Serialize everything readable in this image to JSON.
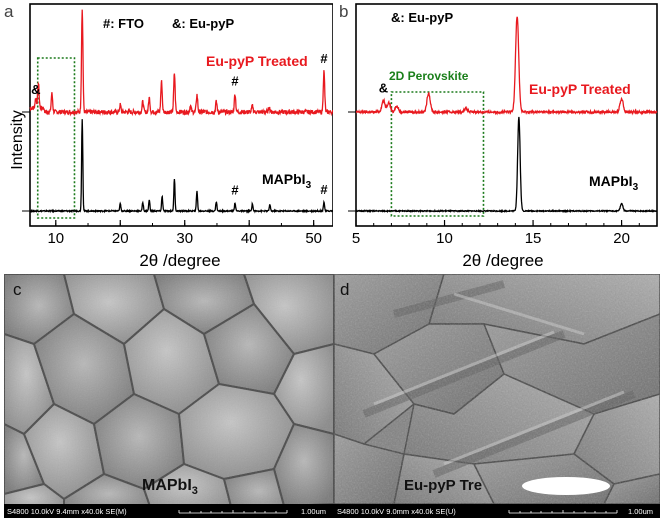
{
  "chart_data": [
    {
      "panel": "a",
      "type": "line",
      "xlabel": "2θ /degree",
      "ylabel": "Intensity",
      "xlim": [
        6,
        53
      ],
      "xticks": [
        10,
        20,
        30,
        40,
        50
      ],
      "header_labels": [
        "#: FTO",
        "&: Eu-pyP"
      ],
      "series": [
        {
          "name": "Eu-pyP Treated",
          "color": "#e8191f",
          "peaks": [
            [
              6.9,
              0.1
            ],
            [
              7.3,
              0.24
            ],
            [
              9.4,
              0.18
            ],
            [
              14.1,
              1.0
            ],
            [
              20.0,
              0.07
            ],
            [
              23.5,
              0.1
            ],
            [
              24.5,
              0.14
            ],
            [
              26.4,
              0.3
            ],
            [
              28.4,
              0.38
            ],
            [
              30.9,
              0.06
            ],
            [
              31.9,
              0.17
            ],
            [
              34.9,
              0.1
            ],
            [
              37.8,
              0.18
            ],
            [
              40.5,
              0.06
            ],
            [
              43.1,
              0.05
            ],
            [
              51.6,
              0.4
            ]
          ]
        },
        {
          "name": "MAPbI3",
          "color": "#000000",
          "peaks": [
            [
              14.1,
              1.0
            ],
            [
              20.0,
              0.08
            ],
            [
              23.5,
              0.09
            ],
            [
              24.5,
              0.12
            ],
            [
              26.5,
              0.16
            ],
            [
              28.4,
              0.35
            ],
            [
              31.9,
              0.22
            ],
            [
              34.9,
              0.1
            ],
            [
              37.8,
              0.09
            ],
            [
              40.5,
              0.08
            ],
            [
              43.2,
              0.07
            ],
            [
              51.6,
              0.1
            ]
          ]
        }
      ],
      "annotations": [
        {
          "text": "&",
          "x": 6.9,
          "series": 0
        },
        {
          "text": "#",
          "x": 37.8,
          "series": 0
        },
        {
          "text": "#",
          "x": 51.6,
          "series": 0
        },
        {
          "text": "#",
          "x": 37.8,
          "series": 1
        },
        {
          "text": "#",
          "x": 51.6,
          "series": 1
        }
      ],
      "highlight_box_x": [
        7.2,
        12.9
      ]
    },
    {
      "panel": "b",
      "type": "line",
      "xlabel": "2θ /degree",
      "xlim": [
        5,
        22
      ],
      "xticks": [
        5,
        10,
        15,
        20
      ],
      "header_labels": [
        "&: Eu-pyP"
      ],
      "series": [
        {
          "name": "Eu-pyP Treated",
          "color": "#e8191f",
          "peaks": [
            [
              6.55,
              0.12
            ],
            [
              6.85,
              0.1
            ],
            [
              7.3,
              0.06
            ],
            [
              9.1,
              0.2
            ],
            [
              11.2,
              0.04
            ],
            [
              14.1,
              1.0
            ],
            [
              20.0,
              0.14
            ]
          ]
        },
        {
          "name": "MAPbI3",
          "color": "#000000",
          "peaks": [
            [
              14.2,
              1.0
            ],
            [
              20.0,
              0.08
            ]
          ]
        }
      ],
      "annotations": [
        {
          "text": "&",
          "x": 6.55,
          "series": 0
        }
      ],
      "highlight_box_x": [
        7.0,
        12.2
      ],
      "highlight_box_label": "2D Perovskite"
    }
  ],
  "panels": {
    "a": {
      "letter": "a",
      "header_fto": "#: FTO",
      "header_eu": "&: Eu-pyP",
      "label_treated": "Eu-pyP Treated",
      "label_mapbi": "MAPbI",
      "label_mapbi_sub": "3",
      "xlabel": "2θ /degree",
      "ylabel": "Intensity"
    },
    "b": {
      "letter": "b",
      "header_eu": "&: Eu-pyP",
      "label_treated": "Eu-pyP Treated",
      "label_mapbi": "MAPbI",
      "label_mapbi_sub": "3",
      "box_label": "2D Perovskite",
      "xlabel": "2θ /degree"
    },
    "c": {
      "letter": "c",
      "overlay": "MAPbI",
      "overlay_sub": "3",
      "info": "S4800 10.0kV 9.4mm x40.0k SE(M)",
      "scale": "1.00um"
    },
    "d": {
      "letter": "d",
      "overlay": "Eu-pyP Tre",
      "info": "S4800 10.0kV 9.0mm x40.0k SE(U)",
      "scale": "1.00um"
    }
  },
  "colors": {
    "treated": "#e8191f",
    "mapbi": "#000000",
    "box": "#1c7a1c",
    "box_label": "#1a7f1a"
  }
}
